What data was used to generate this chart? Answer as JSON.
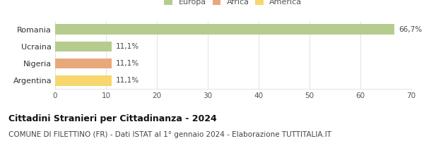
{
  "categories": [
    "Romania",
    "Ucraina",
    "Nigeria",
    "Argentina"
  ],
  "values": [
    66.7,
    11.1,
    11.1,
    11.1
  ],
  "bar_colors": [
    "#b5cc8e",
    "#b5cc8e",
    "#e8a87c",
    "#f5d76e"
  ],
  "legend_items": [
    {
      "label": "Europa",
      "color": "#b5cc8e"
    },
    {
      "label": "Africa",
      "color": "#e8a87c"
    },
    {
      "label": "America",
      "color": "#f5d76e"
    }
  ],
  "xlim": [
    0,
    70
  ],
  "xticks": [
    0,
    10,
    20,
    30,
    40,
    50,
    60,
    70
  ],
  "title": "Cittadini Stranieri per Cittadinanza - 2024",
  "subtitle": "COMUNE DI FILETTINO (FR) - Dati ISTAT al 1° gennaio 2024 - Elaborazione TUTTITALIA.IT",
  "title_fontsize": 9,
  "subtitle_fontsize": 7.5,
  "label_fontsize": 8,
  "tick_fontsize": 7.5,
  "bar_label_fontsize": 7.5,
  "background_color": "#ffffff",
  "grid_color": "#dddddd"
}
